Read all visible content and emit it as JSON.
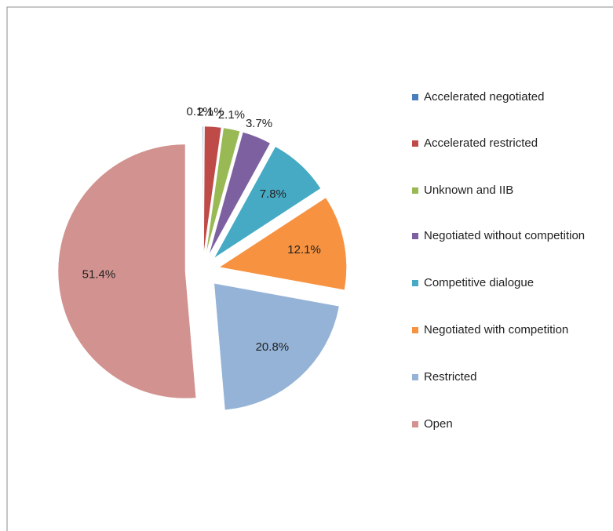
{
  "chart_data": {
    "type": "pie",
    "categories": [
      "Accelerated negotiated",
      "Accelerated restricted",
      "Unknown and IIB",
      "Negotiated without competition",
      "Competitive dialogue",
      "Negotiated with competition",
      "Restricted",
      "Open"
    ],
    "values": [
      0.1,
      2.1,
      2.1,
      3.7,
      7.8,
      12.1,
      20.8,
      51.4
    ],
    "value_labels": [
      "0.1%",
      "2.1%",
      "2.1%",
      "3.7%",
      "7.8%",
      "12.1%",
      "20.8%",
      "51.4%"
    ],
    "colors": [
      "#4a7ebb",
      "#be4b48",
      "#98b954",
      "#7d60a0",
      "#46aac5",
      "#f69240",
      "#95b3d7",
      "#d19290"
    ],
    "legend": "right"
  }
}
